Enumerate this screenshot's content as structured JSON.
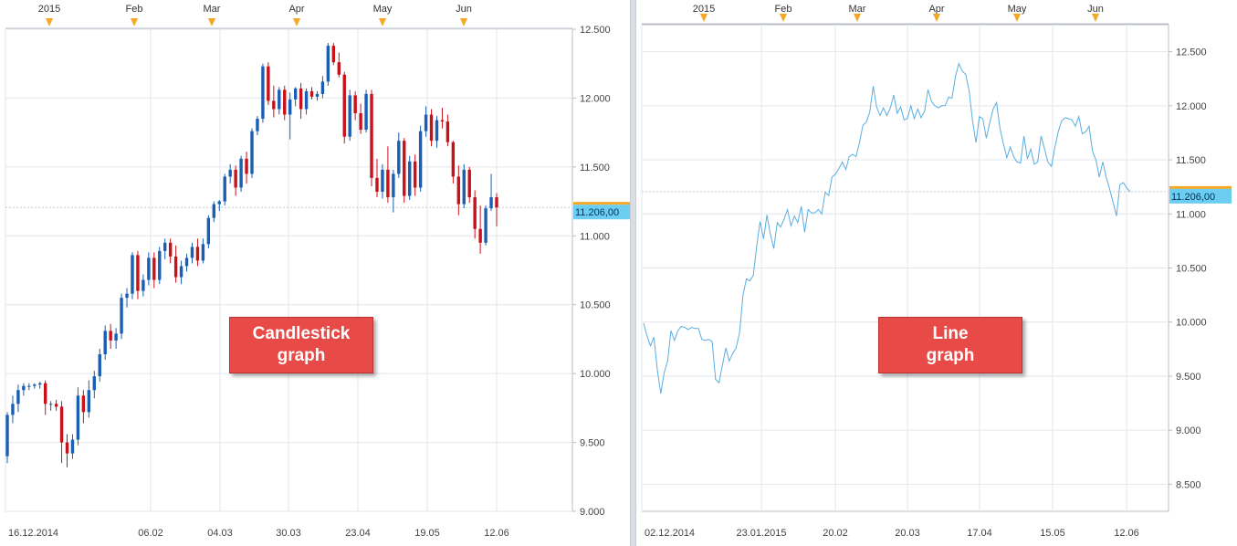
{
  "colors": {
    "up": "#1a5fb4",
    "down": "#c8111b",
    "line": "#5aaee0",
    "grid": "#e2e6ec",
    "frame": "#b8bec8",
    "marker": "#f5a623",
    "badge": "#6ccdf3",
    "callout": "#e84a48"
  },
  "left": {
    "callout": {
      "line1": "Candlestick",
      "line2": "graph"
    },
    "top_labels": [
      "2015",
      "Feb",
      "Mar",
      "Apr",
      "May",
      "Jun"
    ],
    "last_price_label": "11.206,00"
  },
  "right": {
    "callout": {
      "line1": "Line",
      "line2": "graph"
    },
    "top_labels": [
      "2015",
      "Feb",
      "Mar",
      "Apr",
      "May",
      "Jun"
    ],
    "last_price_label": "11.206,00"
  },
  "chart_data": [
    {
      "type": "candlestick",
      "x_labels": [
        "16.12.2014",
        "06.02",
        "04.03",
        "30.03",
        "23.04",
        "19.05",
        "12.06"
      ],
      "y_ticks": [
        "12.500",
        "12.000",
        "11.500",
        "11.000",
        "10.500",
        "10.000",
        "9.500",
        "9.000"
      ],
      "ylim": [
        9000,
        12500
      ],
      "last_price": 11206,
      "series": [
        {
          "name": "",
          "values": [
            [
              9400,
              9720,
              9350,
              9700
            ],
            [
              9700,
              9840,
              9640,
              9780
            ],
            [
              9780,
              9920,
              9720,
              9880
            ],
            [
              9880,
              9930,
              9840,
              9910
            ],
            [
              9910,
              9930,
              9880,
              9910
            ],
            [
              9910,
              9930,
              9890,
              9920
            ],
            [
              9920,
              9940,
              9890,
              9930
            ],
            [
              9930,
              9950,
              9700,
              9780
            ],
            [
              9780,
              9800,
              9730,
              9780
            ],
            [
              9780,
              9810,
              9730,
              9760
            ],
            [
              9760,
              9800,
              9350,
              9500
            ],
            [
              9500,
              9560,
              9320,
              9420
            ],
            [
              9420,
              9560,
              9380,
              9520
            ],
            [
              9520,
              9900,
              9480,
              9840
            ],
            [
              9840,
              9880,
              9640,
              9720
            ],
            [
              9720,
              9950,
              9680,
              9880
            ],
            [
              9880,
              10020,
              9820,
              9980
            ],
            [
              9980,
              10180,
              9940,
              10140
            ],
            [
              10140,
              10350,
              10100,
              10310
            ],
            [
              10310,
              10360,
              10180,
              10240
            ],
            [
              10240,
              10330,
              10180,
              10290
            ],
            [
              10290,
              10580,
              10250,
              10550
            ],
            [
              10550,
              10620,
              10480,
              10580
            ],
            [
              10580,
              10880,
              10540,
              10860
            ],
            [
              10860,
              10890,
              10540,
              10600
            ],
            [
              10600,
              10720,
              10560,
              10680
            ],
            [
              10680,
              10880,
              10640,
              10840
            ],
            [
              10840,
              10880,
              10620,
              10680
            ],
            [
              10680,
              10920,
              10650,
              10890
            ],
            [
              10890,
              10980,
              10830,
              10950
            ],
            [
              10950,
              10980,
              10800,
              10850
            ],
            [
              10850,
              10930,
              10660,
              10700
            ],
            [
              10700,
              10820,
              10650,
              10780
            ],
            [
              10780,
              10870,
              10740,
              10840
            ],
            [
              10840,
              10950,
              10800,
              10920
            ],
            [
              10920,
              10980,
              10780,
              10820
            ],
            [
              10820,
              10980,
              10800,
              10940
            ],
            [
              10940,
              11150,
              10910,
              11130
            ],
            [
              11130,
              11250,
              11100,
              11230
            ],
            [
              11230,
              11260,
              11180,
              11250
            ],
            [
              11250,
              11450,
              11220,
              11430
            ],
            [
              11430,
              11520,
              11380,
              11480
            ],
            [
              11480,
              11510,
              11290,
              11350
            ],
            [
              11350,
              11580,
              11320,
              11560
            ],
            [
              11560,
              11610,
              11380,
              11450
            ],
            [
              11450,
              11780,
              11420,
              11760
            ],
            [
              11760,
              11870,
              11730,
              11850
            ],
            [
              11850,
              12250,
              11820,
              12230
            ],
            [
              12230,
              12260,
              11950,
              11980
            ],
            [
              11980,
              12090,
              11860,
              11920
            ],
            [
              11920,
              12080,
              11880,
              12060
            ],
            [
              12060,
              12090,
              11840,
              11880
            ],
            [
              11880,
              12040,
              11700,
              11990
            ],
            [
              11990,
              12080,
              11940,
              12070
            ],
            [
              12070,
              12110,
              11850,
              11920
            ],
            [
              11920,
              12070,
              11880,
              12050
            ],
            [
              12050,
              12080,
              11990,
              12010
            ],
            [
              12010,
              12050,
              11980,
              12030
            ],
            [
              12030,
              12160,
              12000,
              12120
            ],
            [
              12120,
              12400,
              12090,
              12380
            ],
            [
              12380,
              12400,
              12240,
              12260
            ],
            [
              12260,
              12330,
              12150,
              12170
            ],
            [
              12170,
              12190,
              11670,
              11720
            ],
            [
              11720,
              12060,
              11690,
              12020
            ],
            [
              12020,
              12050,
              11840,
              11890
            ],
            [
              11890,
              11960,
              11740,
              11770
            ],
            [
              11770,
              12060,
              11750,
              12030
            ],
            [
              12030,
              12060,
              11360,
              11420
            ],
            [
              11420,
              11560,
              11280,
              11320
            ],
            [
              11320,
              11520,
              11270,
              11480
            ],
            [
              11480,
              11650,
              11240,
              11280
            ],
            [
              11280,
              11480,
              11170,
              11450
            ],
            [
              11450,
              11750,
              11420,
              11690
            ],
            [
              11690,
              11710,
              11240,
              11290
            ],
            [
              11290,
              11580,
              11260,
              11540
            ],
            [
              11540,
              11590,
              11290,
              11350
            ],
            [
              11350,
              11800,
              11320,
              11760
            ],
            [
              11760,
              11940,
              11720,
              11880
            ],
            [
              11880,
              11920,
              11650,
              11690
            ],
            [
              11690,
              11870,
              11640,
              11840
            ],
            [
              11840,
              11930,
              11780,
              11830
            ],
            [
              11830,
              11880,
              11650,
              11680
            ],
            [
              11680,
              11690,
              11380,
              11430
            ],
            [
              11430,
              11510,
              11150,
              11230
            ],
            [
              11230,
              11520,
              11200,
              11480
            ],
            [
              11480,
              11500,
              11240,
              11280
            ],
            [
              11280,
              11330,
              10980,
              11050
            ],
            [
              11050,
              11220,
              10870,
              10950
            ],
            [
              10950,
              11220,
              10930,
              11200
            ],
            [
              11200,
              11450,
              11180,
              11280
            ],
            [
              11280,
              11310,
              11070,
              11206
            ]
          ]
        }
      ]
    },
    {
      "type": "line",
      "x_labels": [
        "02.12.2014",
        "23.01.2015",
        "20.02",
        "20.03",
        "17.04",
        "15.05",
        "12.06"
      ],
      "y_ticks": [
        "12.500",
        "12.000",
        "11.500",
        "11.000",
        "10.500",
        "10.000",
        "9.500",
        "9.000",
        "8.500"
      ],
      "ylim": [
        8250,
        12750
      ],
      "last_price": 11206,
      "series": [
        {
          "name": "",
          "values": [
            9990,
            9870,
            9780,
            9860,
            9560,
            9340,
            9530,
            9640,
            9920,
            9830,
            9920,
            9960,
            9950,
            9930,
            9950,
            9940,
            9940,
            9840,
            9830,
            9840,
            9820,
            9470,
            9440,
            9600,
            9760,
            9640,
            9710,
            9760,
            9900,
            10250,
            10400,
            10380,
            10430,
            10700,
            10930,
            10770,
            10990,
            10810,
            10680,
            10920,
            10880,
            10950,
            11040,
            10890,
            10980,
            10920,
            11070,
            10830,
            11040,
            11010,
            11010,
            11040,
            11000,
            11200,
            11170,
            11340,
            11370,
            11420,
            11480,
            11410,
            11530,
            11550,
            11530,
            11660,
            11820,
            11850,
            11940,
            12180,
            11990,
            11910,
            11980,
            11910,
            11980,
            12100,
            11930,
            11990,
            11870,
            11880,
            12000,
            11880,
            11970,
            11890,
            11950,
            12150,
            12040,
            12000,
            11980,
            12000,
            12000,
            12080,
            12070,
            12270,
            12390,
            12320,
            12290,
            12140,
            11860,
            11660,
            11900,
            11880,
            11700,
            11840,
            11970,
            12030,
            11790,
            11650,
            11520,
            11620,
            11530,
            11480,
            11470,
            11720,
            11510,
            11600,
            11460,
            11480,
            11720,
            11600,
            11480,
            11440,
            11610,
            11760,
            11860,
            11890,
            11880,
            11870,
            11810,
            11900,
            11740,
            11760,
            11810,
            11580,
            11500,
            11340,
            11480,
            11340,
            11230,
            11110,
            10980,
            11270,
            11290,
            11240,
            11206
          ]
        }
      ]
    }
  ]
}
